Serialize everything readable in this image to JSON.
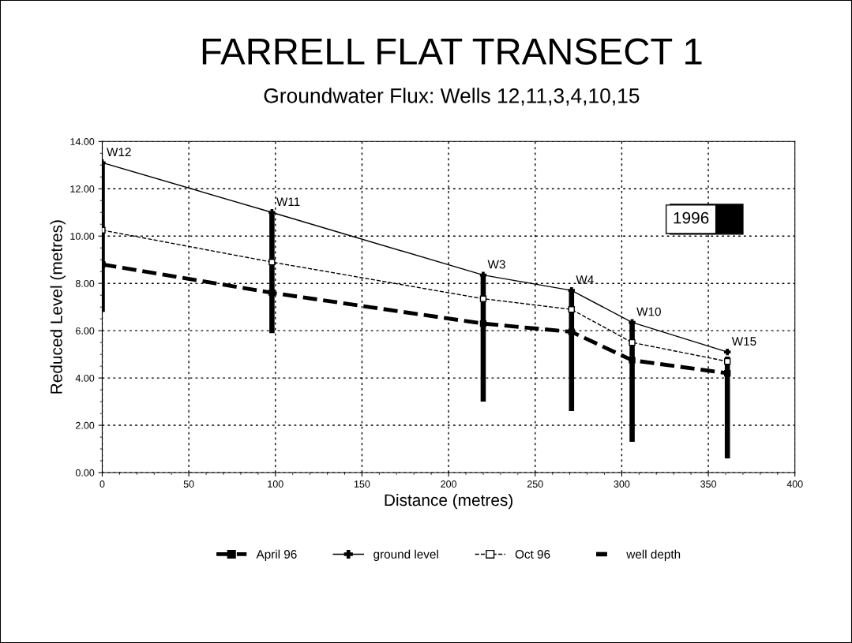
{
  "chart_data": {
    "type": "line",
    "title": "FARRELL FLAT TRANSECT 1",
    "subtitle": "Groundwater Flux: Wells 12,11,3,4,10,15",
    "xlabel": "Distance (metres)",
    "ylabel": "Reduced Level (metres)",
    "x": [
      0,
      98,
      220,
      271,
      306,
      361
    ],
    "series": [
      {
        "name": "April 96",
        "color": "#000000",
        "values": [
          8.8,
          7.6,
          6.3,
          5.95,
          4.75,
          4.2
        ],
        "line_style": "dashed",
        "marker": "square"
      },
      {
        "name": "ground level",
        "color": "#000000",
        "values": [
          13.1,
          11.0,
          8.35,
          7.7,
          6.35,
          5.1
        ],
        "line_style": "solid",
        "marker": "cross"
      },
      {
        "name": "Oct 96",
        "color": "#000000",
        "values": [
          10.25,
          8.9,
          7.35,
          6.9,
          5.5,
          4.7
        ],
        "line_style": "dashed",
        "marker": "square"
      },
      {
        "name": "well depth",
        "type": "bar",
        "color": "#000000",
        "base": [
          6.8,
          5.9,
          3.0,
          2.6,
          1.3,
          0.6
        ],
        "values": [
          6.3,
          5.1,
          5.35,
          5.1,
          5.05,
          4.3
        ]
      }
    ],
    "annotations": [
      {
        "text": "W12",
        "x": 0,
        "y": 13.1
      },
      {
        "text": "W11",
        "x": 98,
        "y": 11.0
      },
      {
        "text": "W3",
        "x": 220,
        "y": 8.35
      },
      {
        "text": "W4",
        "x": 271,
        "y": 7.7
      },
      {
        "text": "W10",
        "x": 306,
        "y": 6.35
      },
      {
        "text": "W15",
        "x": 361,
        "y": 5.1
      },
      "1996"
    ],
    "xlim": [
      0,
      400
    ],
    "xticks": [
      0,
      50,
      100,
      150,
      200,
      250,
      300,
      350,
      400
    ],
    "ylim": [
      0,
      14
    ],
    "yticks": [
      {
        "value": 0,
        "label": "0.00"
      },
      {
        "value": 2,
        "label": "2.00"
      },
      {
        "value": 4,
        "label": "4.00"
      },
      {
        "value": 6,
        "label": "6.00"
      },
      {
        "value": 8,
        "label": "8.00"
      },
      {
        "value": 10,
        "label": "10.00"
      },
      {
        "value": 12,
        "label": "12.00"
      },
      {
        "value": 14,
        "label": "14.00"
      }
    ],
    "grid": true,
    "legend": "bottom"
  }
}
